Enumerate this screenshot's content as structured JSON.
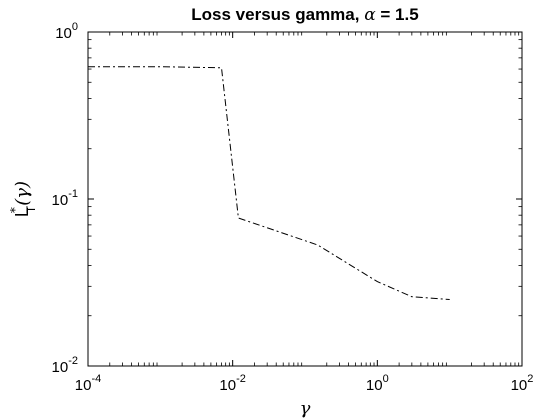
{
  "chart_data": {
    "type": "line",
    "title": "Loss versus gamma, α = 1.5",
    "title_parts": {
      "prefix": "Loss versus gamma, ",
      "symbol": "α",
      "suffix": " = 1.5"
    },
    "xlabel": "γ",
    "ylabel": {
      "main": "L",
      "sup": "*",
      "sub": "T",
      "arg": "(γ)"
    },
    "xscale": "log",
    "yscale": "log",
    "xlim": [
      0.0001,
      100
    ],
    "ylim": [
      0.01,
      1
    ],
    "grid": false,
    "legend": "none",
    "x_ticks": [
      {
        "base": "10",
        "exp": "-4",
        "value": 0.0001
      },
      {
        "base": "10",
        "exp": "-2",
        "value": 0.01
      },
      {
        "base": "10",
        "exp": "0",
        "value": 1
      },
      {
        "base": "10",
        "exp": "2",
        "value": 100
      }
    ],
    "y_ticks": [
      {
        "base": "10",
        "exp": "-2",
        "value": 0.01
      },
      {
        "base": "10",
        "exp": "-1",
        "value": 0.1
      },
      {
        "base": "10",
        "exp": "0",
        "value": 1
      }
    ],
    "series": [
      {
        "line_style": "dash-dot",
        "color": "#000000",
        "x": [
          0.0001,
          0.001,
          0.007,
          0.012,
          0.15,
          1.0,
          3.0,
          10.0
        ],
        "y": [
          0.62,
          0.62,
          0.61,
          0.077,
          0.053,
          0.032,
          0.026,
          0.025
        ]
      }
    ]
  }
}
